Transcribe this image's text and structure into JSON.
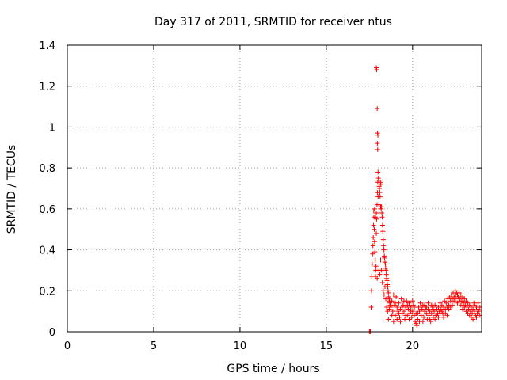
{
  "chart_data": {
    "type": "scatter",
    "title": "Day 317 of 2011, SRMTID for receiver ntus",
    "xlabel": "GPS time / hours",
    "ylabel": "SRMTID / TECUs",
    "xlim": [
      0,
      24
    ],
    "ylim": [
      0,
      1.4
    ],
    "x_ticks": [
      0,
      5,
      10,
      15,
      20
    ],
    "x_tick_labels": [
      "0",
      "5",
      "10",
      "15",
      "20"
    ],
    "y_ticks": [
      0,
      0.2,
      0.4,
      0.6,
      0.8,
      1.0,
      1.2,
      1.4
    ],
    "y_tick_labels": [
      "0",
      "0.2",
      "0.4",
      "0.6",
      "0.8",
      "1",
      "1.2",
      "1.4"
    ],
    "grid": true,
    "marker": "plus",
    "color": "#ff0000",
    "series": [
      {
        "name": "SRMTID",
        "points": [
          [
            17.5,
            0.0
          ],
          [
            17.55,
            0.0
          ],
          [
            17.6,
            0.12
          ],
          [
            17.62,
            0.2
          ],
          [
            17.64,
            0.27
          ],
          [
            17.66,
            0.33
          ],
          [
            17.68,
            0.38
          ],
          [
            17.7,
            0.42
          ],
          [
            17.72,
            0.46
          ],
          [
            17.74,
            0.52
          ],
          [
            17.76,
            0.56
          ],
          [
            17.78,
            0.5
          ],
          [
            17.8,
            0.44
          ],
          [
            17.82,
            0.39
          ],
          [
            17.84,
            0.35
          ],
          [
            17.86,
            0.3
          ],
          [
            17.88,
            0.32
          ],
          [
            17.9,
            0.48
          ],
          [
            17.92,
            0.55
          ],
          [
            17.94,
            0.62
          ],
          [
            17.96,
            0.68
          ],
          [
            17.98,
            0.73
          ],
          [
            17.9,
            1.29
          ],
          [
            17.92,
            1.28
          ],
          [
            17.95,
            1.09
          ],
          [
            17.97,
            0.97
          ],
          [
            17.99,
            0.96
          ],
          [
            17.96,
            0.92
          ],
          [
            17.98,
            0.89
          ],
          [
            18.0,
            0.78
          ],
          [
            18.02,
            0.75
          ],
          [
            18.04,
            0.74
          ],
          [
            18.06,
            0.71
          ],
          [
            18.08,
            0.7
          ],
          [
            18.1,
            0.68
          ],
          [
            18.12,
            0.66
          ],
          [
            18.14,
            0.73
          ],
          [
            18.16,
            0.72
          ],
          [
            18.18,
            0.6
          ],
          [
            18.2,
            0.61
          ],
          [
            18.22,
            0.58
          ],
          [
            18.24,
            0.56
          ],
          [
            18.26,
            0.52
          ],
          [
            18.28,
            0.49
          ],
          [
            18.3,
            0.45
          ],
          [
            18.32,
            0.42
          ],
          [
            18.34,
            0.4
          ],
          [
            18.36,
            0.37
          ],
          [
            18.38,
            0.36
          ],
          [
            18.4,
            0.34
          ],
          [
            18.42,
            0.33
          ],
          [
            18.44,
            0.31
          ],
          [
            18.46,
            0.3
          ],
          [
            18.48,
            0.28
          ],
          [
            18.5,
            0.26
          ],
          [
            18.52,
            0.25
          ],
          [
            18.54,
            0.23
          ],
          [
            18.56,
            0.22
          ],
          [
            18.58,
            0.2
          ],
          [
            18.6,
            0.19
          ],
          [
            18.62,
            0.17
          ],
          [
            18.64,
            0.16
          ],
          [
            18.66,
            0.15
          ],
          [
            18.68,
            0.14
          ],
          [
            18.7,
            0.13
          ],
          [
            17.85,
            0.27
          ],
          [
            17.95,
            0.26
          ],
          [
            18.05,
            0.3
          ],
          [
            18.1,
            0.28
          ],
          [
            18.15,
            0.35
          ],
          [
            18.2,
            0.3
          ],
          [
            18.25,
            0.24
          ],
          [
            18.3,
            0.2
          ],
          [
            18.35,
            0.18
          ],
          [
            18.4,
            0.22
          ],
          [
            18.45,
            0.16
          ],
          [
            18.5,
            0.12
          ],
          [
            18.55,
            0.1
          ],
          [
            18.6,
            0.06
          ],
          [
            18.65,
            0.11
          ],
          [
            17.75,
            0.59
          ],
          [
            17.8,
            0.6
          ],
          [
            17.85,
            0.56
          ],
          [
            17.9,
            0.58
          ],
          [
            18.0,
            0.66
          ],
          [
            18.05,
            0.62
          ],
          [
            18.15,
            0.61
          ],
          [
            18.75,
            0.12
          ],
          [
            18.8,
            0.15
          ],
          [
            18.85,
            0.1
          ],
          [
            18.9,
            0.18
          ],
          [
            18.95,
            0.13
          ],
          [
            19.0,
            0.08
          ],
          [
            19.05,
            0.17
          ],
          [
            19.1,
            0.12
          ],
          [
            19.15,
            0.1
          ],
          [
            19.2,
            0.14
          ],
          [
            19.25,
            0.07
          ],
          [
            19.3,
            0.11
          ],
          [
            19.35,
            0.16
          ],
          [
            19.4,
            0.09
          ],
          [
            19.45,
            0.13
          ],
          [
            19.5,
            0.1
          ],
          [
            19.55,
            0.06
          ],
          [
            19.6,
            0.12
          ],
          [
            19.65,
            0.15
          ],
          [
            19.7,
            0.08
          ],
          [
            19.75,
            0.11
          ],
          [
            19.8,
            0.14
          ],
          [
            19.85,
            0.09
          ],
          [
            19.9,
            0.12
          ],
          [
            19.95,
            0.07
          ],
          [
            20.0,
            0.1
          ],
          [
            20.05,
            0.13
          ],
          [
            20.1,
            0.08
          ],
          [
            20.15,
            0.05
          ],
          [
            20.2,
            0.04
          ],
          [
            20.25,
            0.03
          ],
          [
            20.3,
            0.09
          ],
          [
            20.35,
            0.12
          ],
          [
            20.4,
            0.1
          ],
          [
            20.45,
            0.14
          ],
          [
            20.5,
            0.08
          ],
          [
            20.55,
            0.11
          ],
          [
            20.6,
            0.13
          ],
          [
            20.65,
            0.07
          ],
          [
            20.7,
            0.1
          ],
          [
            20.75,
            0.12
          ],
          [
            20.8,
            0.09
          ],
          [
            20.85,
            0.06
          ],
          [
            20.9,
            0.11
          ],
          [
            20.95,
            0.08
          ],
          [
            21.0,
            0.1
          ],
          [
            21.05,
            0.05
          ],
          [
            21.1,
            0.09
          ],
          [
            21.15,
            0.12
          ],
          [
            21.2,
            0.07
          ],
          [
            21.25,
            0.1
          ],
          [
            21.3,
            0.13
          ],
          [
            21.35,
            0.08
          ],
          [
            21.4,
            0.11
          ],
          [
            21.45,
            0.09
          ],
          [
            21.5,
            0.12
          ],
          [
            21.55,
            0.1
          ],
          [
            21.6,
            0.14
          ],
          [
            21.65,
            0.11
          ],
          [
            21.7,
            0.13
          ],
          [
            21.75,
            0.09
          ],
          [
            21.8,
            0.12
          ],
          [
            21.85,
            0.15
          ],
          [
            21.9,
            0.11
          ],
          [
            21.95,
            0.14
          ],
          [
            22.0,
            0.12
          ],
          [
            22.05,
            0.16
          ],
          [
            22.1,
            0.13
          ],
          [
            22.15,
            0.17
          ],
          [
            22.2,
            0.15
          ],
          [
            22.25,
            0.18
          ],
          [
            22.3,
            0.16
          ],
          [
            22.35,
            0.19
          ],
          [
            22.4,
            0.17
          ],
          [
            22.45,
            0.18
          ],
          [
            22.5,
            0.2
          ],
          [
            22.55,
            0.19
          ],
          [
            22.6,
            0.18
          ],
          [
            22.65,
            0.17
          ],
          [
            22.7,
            0.19
          ],
          [
            22.75,
            0.16
          ],
          [
            22.8,
            0.18
          ],
          [
            22.85,
            0.15
          ],
          [
            22.9,
            0.17
          ],
          [
            22.95,
            0.14
          ],
          [
            23.0,
            0.16
          ],
          [
            23.05,
            0.13
          ],
          [
            23.1,
            0.15
          ],
          [
            23.15,
            0.12
          ],
          [
            23.2,
            0.14
          ],
          [
            23.25,
            0.11
          ],
          [
            23.3,
            0.13
          ],
          [
            23.35,
            0.1
          ],
          [
            23.4,
            0.12
          ],
          [
            23.45,
            0.09
          ],
          [
            23.5,
            0.11
          ],
          [
            23.55,
            0.14
          ],
          [
            23.6,
            0.1
          ],
          [
            23.65,
            0.08
          ],
          [
            23.7,
            0.12
          ],
          [
            23.75,
            0.09
          ],
          [
            23.8,
            0.11
          ],
          [
            23.85,
            0.1
          ],
          [
            23.9,
            0.08
          ],
          [
            18.8,
            0.08
          ],
          [
            18.9,
            0.05
          ],
          [
            19.0,
            0.14
          ],
          [
            19.1,
            0.06
          ],
          [
            19.2,
            0.09
          ],
          [
            19.3,
            0.05
          ],
          [
            19.4,
            0.12
          ],
          [
            19.5,
            0.15
          ],
          [
            19.6,
            0.08
          ],
          [
            19.7,
            0.13
          ],
          [
            19.8,
            0.06
          ],
          [
            19.9,
            0.1
          ],
          [
            20.0,
            0.15
          ],
          [
            20.1,
            0.12
          ],
          [
            20.2,
            0.09
          ],
          [
            20.3,
            0.06
          ],
          [
            20.4,
            0.05
          ],
          [
            20.5,
            0.12
          ],
          [
            20.6,
            0.05
          ],
          [
            20.7,
            0.13
          ],
          [
            20.8,
            0.12
          ],
          [
            20.9,
            0.14
          ],
          [
            21.0,
            0.06
          ],
          [
            21.1,
            0.13
          ],
          [
            21.2,
            0.11
          ],
          [
            21.3,
            0.06
          ],
          [
            21.4,
            0.08
          ],
          [
            21.5,
            0.07
          ],
          [
            21.6,
            0.09
          ],
          [
            21.7,
            0.1
          ],
          [
            21.8,
            0.07
          ],
          [
            21.9,
            0.09
          ],
          [
            22.0,
            0.08
          ],
          [
            22.1,
            0.11
          ],
          [
            22.2,
            0.12
          ],
          [
            22.3,
            0.13
          ],
          [
            22.4,
            0.15
          ],
          [
            22.5,
            0.16
          ],
          [
            22.6,
            0.14
          ],
          [
            22.7,
            0.15
          ],
          [
            22.8,
            0.13
          ],
          [
            22.9,
            0.11
          ],
          [
            23.0,
            0.12
          ],
          [
            23.1,
            0.1
          ],
          [
            23.2,
            0.09
          ],
          [
            23.3,
            0.08
          ],
          [
            23.4,
            0.07
          ],
          [
            23.5,
            0.06
          ],
          [
            23.6,
            0.13
          ],
          [
            23.7,
            0.07
          ],
          [
            23.8,
            0.14
          ],
          [
            23.9,
            0.12
          ]
        ]
      }
    ]
  }
}
